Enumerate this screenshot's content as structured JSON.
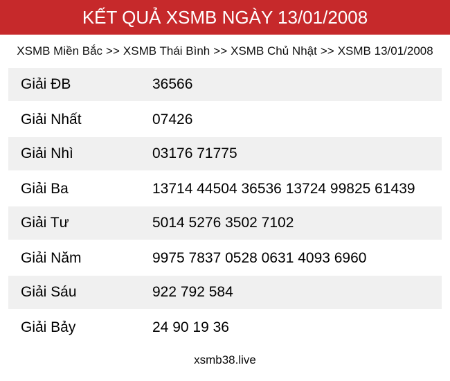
{
  "colors": {
    "header_bg": "#c6292b",
    "header_text": "#ffffff",
    "alt_row_bg": "#f0f0f0",
    "body_bg": "#ffffff",
    "text": "#000000"
  },
  "header": {
    "title": "KẾT QUẢ XSMB NGÀY 13/01/2008"
  },
  "breadcrumb": {
    "separator": ">>",
    "items": [
      "XSMB Miền Bắc",
      "XSMB Thái Bình",
      "XSMB Chủ Nhật",
      "XSMB 13/01/2008"
    ]
  },
  "results_table": {
    "rows": [
      {
        "label": "Giải ĐB",
        "numbers": "36566"
      },
      {
        "label": "Giải Nhất",
        "numbers": "07426"
      },
      {
        "label": "Giải Nhì",
        "numbers": "03176 71775"
      },
      {
        "label": "Giải Ba",
        "numbers": "13714 44504 36536 13724 99825 61439"
      },
      {
        "label": "Giải Tư",
        "numbers": "5014 5276 3502 7102"
      },
      {
        "label": "Giải Năm",
        "numbers": "9975 7837 0528 0631 4093 6960"
      },
      {
        "label": "Giải Sáu",
        "numbers": "922 792 584"
      },
      {
        "label": "Giải Bảy",
        "numbers": "24 90 19 36"
      }
    ]
  },
  "footer": {
    "site_name": "xsmb38.live"
  }
}
